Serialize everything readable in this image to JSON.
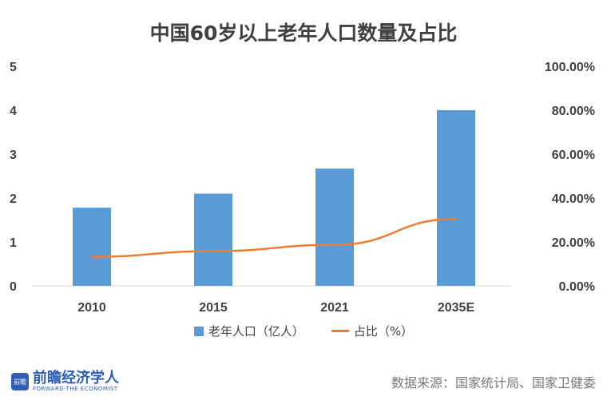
{
  "title": "中国60岁以上老年人口数量及占比",
  "chart_data": {
    "type": "bar",
    "title": "中国60岁以上老年人口数量及占比",
    "categories": [
      "2010",
      "2015",
      "2021",
      "2035E"
    ],
    "series": [
      {
        "name": "老年人口（亿人）",
        "type": "bar",
        "axis": "left",
        "values": [
          1.78,
          2.1,
          2.67,
          4.0
        ],
        "color": "#5b9bd5"
      },
      {
        "name": "占比（%）",
        "type": "line",
        "axis": "right",
        "values": [
          13.26,
          15.8,
          18.7,
          30.5
        ],
        "color": "#ed7d31"
      }
    ],
    "ylim": [
      0,
      5
    ],
    "y_ticks": [
      "0",
      "1",
      "2",
      "3",
      "4",
      "5"
    ],
    "y2lim": [
      0,
      100
    ],
    "y2_ticks": [
      "0.00%",
      "20.00%",
      "40.00%",
      "60.00%",
      "80.00%",
      "100.00%"
    ],
    "grid": false,
    "legend_position": "bottom"
  },
  "logo": {
    "name": "前瞻经济学人",
    "sub": "FORWARD-THE ECONOMIST",
    "mark": "前瞻"
  },
  "source": "数据来源：国家统计局、国家卫健委"
}
